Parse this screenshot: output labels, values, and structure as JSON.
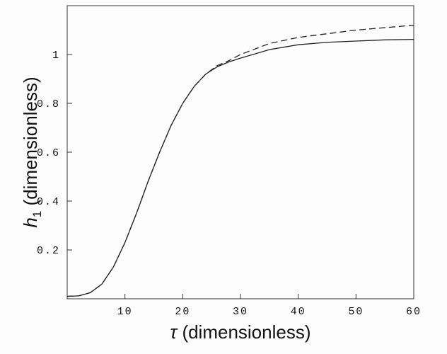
{
  "chart_data": {
    "type": "line",
    "x": [
      0,
      2,
      4,
      6,
      8,
      10,
      12,
      14,
      16,
      18,
      20,
      22,
      24,
      26,
      28,
      30,
      35,
      40,
      45,
      50,
      55,
      60
    ],
    "series": [
      {
        "color": "#222222",
        "dash": false,
        "values": [
          0.01,
          0.012,
          0.025,
          0.06,
          0.13,
          0.23,
          0.35,
          0.48,
          0.6,
          0.71,
          0.8,
          0.87,
          0.92,
          0.95,
          0.97,
          0.985,
          1.02,
          1.04,
          1.05,
          1.055,
          1.06,
          1.062
        ]
      },
      {
        "color": "#222222",
        "dash": true,
        "values": [
          0.01,
          0.012,
          0.025,
          0.06,
          0.13,
          0.23,
          0.35,
          0.48,
          0.6,
          0.71,
          0.8,
          0.87,
          0.92,
          0.955,
          0.975,
          1.0,
          1.045,
          1.07,
          1.085,
          1.1,
          1.11,
          1.12
        ]
      }
    ],
    "xlim": [
      0,
      60
    ],
    "xticks": [
      10,
      20,
      30,
      40,
      50,
      60
    ],
    "ylim": [
      0,
      1.2
    ],
    "yticks": [
      0.2,
      0.4,
      0.6,
      0.8,
      1
    ],
    "xlabel": {
      "symbol": "τ",
      "text": "(dimensionless)"
    },
    "ylabel": {
      "symbol": "h",
      "subscript": "1",
      "text": "(dimensionless)"
    }
  }
}
